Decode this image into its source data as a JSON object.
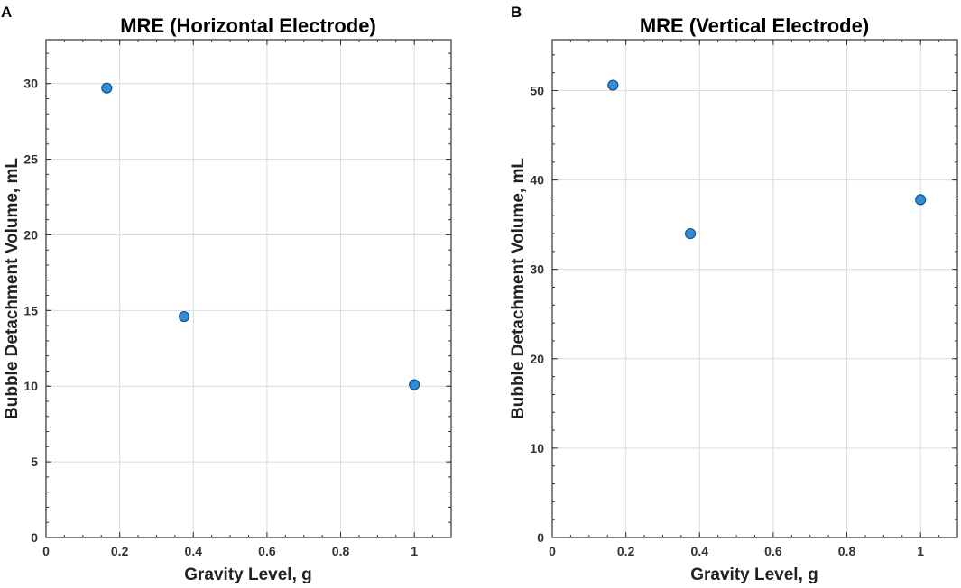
{
  "figure_colors": {
    "marker": "#2e8fd8",
    "marker_edge": "#1b4f8a",
    "grid": "#dcdcdc",
    "axis": "#333333"
  },
  "chart_data": [
    {
      "panel": "A",
      "type": "scatter",
      "title": "MRE (Horizontal Electrode)",
      "xlabel": "Gravity Level, g",
      "ylabel": "Bubble Detachment Volume, mL",
      "xlim": [
        0,
        1.1
      ],
      "ylim": [
        0,
        32.9
      ],
      "xticks": [
        0,
        0.2,
        0.4,
        0.6,
        0.8,
        1
      ],
      "xtick_labels": [
        "0",
        "0.2",
        "0.4",
        "0.6",
        "0.8",
        "1"
      ],
      "yticks": [
        0,
        5,
        10,
        15,
        20,
        25,
        30
      ],
      "ytick_labels": [
        "0",
        "5",
        "10",
        "15",
        "20",
        "25",
        "30"
      ],
      "grid": true,
      "series": [
        {
          "name": "MRE",
          "x": [
            0.165,
            0.375,
            1.0
          ],
          "y": [
            29.7,
            14.6,
            10.1
          ]
        }
      ]
    },
    {
      "panel": "B",
      "type": "scatter",
      "title": "MRE (Vertical Electrode)",
      "xlabel": "Gravity Level, g",
      "ylabel": "Bubble Detachment Volume, mL",
      "xlim": [
        0,
        1.1
      ],
      "ylim": [
        0,
        55.7
      ],
      "xticks": [
        0,
        0.2,
        0.4,
        0.6,
        0.8,
        1
      ],
      "xtick_labels": [
        "0",
        "0.2",
        "0.4",
        "0.6",
        "0.8",
        "1"
      ],
      "yticks": [
        0,
        10,
        20,
        30,
        40,
        50
      ],
      "ytick_labels": [
        "0",
        "10",
        "20",
        "30",
        "40",
        "50"
      ],
      "grid": true,
      "series": [
        {
          "name": "MRE",
          "x": [
            0.165,
            0.375,
            1.0
          ],
          "y": [
            50.6,
            34.0,
            37.8
          ]
        }
      ]
    }
  ]
}
